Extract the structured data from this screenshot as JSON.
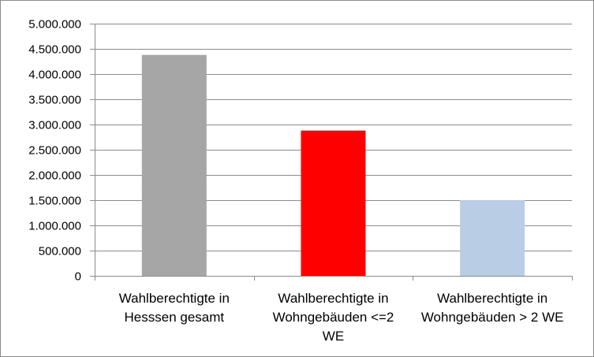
{
  "chart_data": {
    "type": "bar",
    "categories": [
      [
        "Wahlberechtigte in",
        "Hesssen gesamt"
      ],
      [
        "Wahlberechtigte in",
        "Wohngebäuden <=2",
        "WE"
      ],
      [
        "Wahlberechtigte in",
        "Wohngebäuden > 2 WE"
      ]
    ],
    "values": [
      4380000,
      2880000,
      1500000
    ],
    "colors": [
      "#a6a6a6",
      "#ff0000",
      "#b9cde5"
    ],
    "ylim": [
      0,
      5000000
    ],
    "yticks": [
      0,
      500000,
      1000000,
      1500000,
      2000000,
      2500000,
      3000000,
      3500000,
      4000000,
      4500000,
      5000000
    ],
    "ytick_labels": [
      "0",
      "500.000",
      "1.000.000",
      "1.500.000",
      "2.000.000",
      "2.500.000",
      "3.000.000",
      "3.500.000",
      "4.000.000",
      "4.500.000",
      "5.000.000"
    ],
    "grid": true,
    "title": "",
    "xlabel": "",
    "ylabel": ""
  }
}
